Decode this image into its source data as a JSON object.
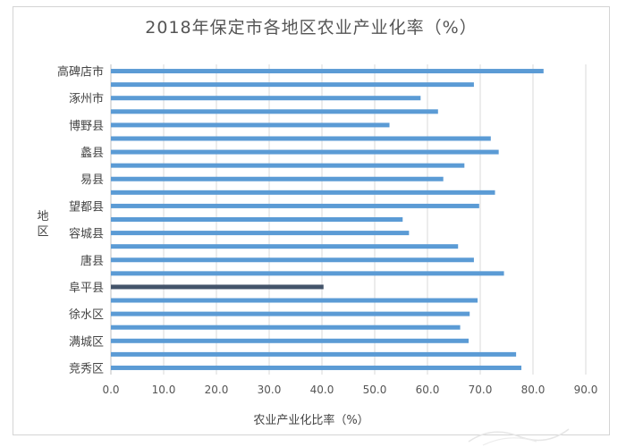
{
  "chart_data": {
    "type": "bar",
    "orientation": "horizontal",
    "title": "2018年保定市各地区农业产业化率（%）",
    "xlabel": "农业产业化比率（%）",
    "ylabel": "地区",
    "xlim": [
      0,
      90
    ],
    "xticks": [
      "0.0",
      "10.0",
      "20.0",
      "30.0",
      "40.0",
      "50.0",
      "60.0",
      "70.0",
      "80.0",
      "90.0"
    ],
    "grid": true,
    "legend": "none",
    "colors": {
      "bar": "#5b9bd5",
      "highlight": "#44546a",
      "grid": "#d9d9d9",
      "axis": "#bfbfbf"
    },
    "categories": [
      "高碑店市",
      "",
      "涿州市",
      "",
      "博野县",
      "",
      "蠡县",
      "",
      "易县",
      "",
      "望都县",
      "",
      "容城县",
      "",
      "唐县",
      "",
      "阜平县",
      "",
      "徐水区",
      "",
      "满城区",
      "",
      "竞秀区"
    ],
    "bars": [
      {
        "value": 82.0
      },
      {
        "value": 68.8
      },
      {
        "value": 58.7
      },
      {
        "value": 62.0
      },
      {
        "value": 52.8
      },
      {
        "value": 72.0
      },
      {
        "value": 73.5
      },
      {
        "value": 67.0
      },
      {
        "value": 63.0
      },
      {
        "value": 72.8
      },
      {
        "value": 69.8
      },
      {
        "value": 55.3
      },
      {
        "value": 56.5
      },
      {
        "value": 65.8
      },
      {
        "value": 68.8
      },
      {
        "value": 74.5
      },
      {
        "value": 40.3,
        "highlight": true
      },
      {
        "value": 69.5
      },
      {
        "value": 68.0
      },
      {
        "value": 66.2
      },
      {
        "value": 67.8
      },
      {
        "value": 76.8
      },
      {
        "value": 77.8
      }
    ]
  }
}
